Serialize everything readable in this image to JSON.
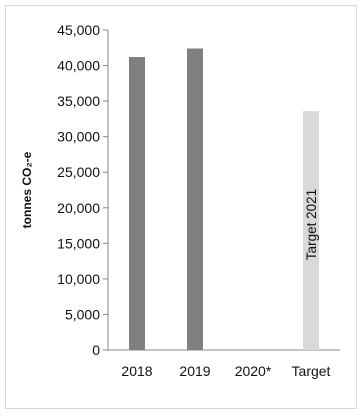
{
  "chart_data": {
    "type": "bar",
    "title": "",
    "xlabel": "",
    "ylabel": "tonnes CO₂-e",
    "ylim": [
      0,
      45000
    ],
    "yticks": [
      0,
      5000,
      10000,
      15000,
      20000,
      25000,
      30000,
      35000,
      40000,
      45000
    ],
    "ytick_labels": [
      "0",
      "5,000",
      "10,000",
      "15,000",
      "20,000",
      "25,000",
      "30,000",
      "35,000",
      "40,000",
      "45,000"
    ],
    "categories": [
      "2018",
      "2019",
      "2020*",
      "Target"
    ],
    "values": [
      41200,
      42400,
      null,
      33600
    ],
    "bar_colors": [
      "#7f7f7f",
      "#7f7f7f",
      "#7f7f7f",
      "#d9d9d9"
    ],
    "annotations": [
      {
        "category": "Target",
        "text": "Target 2021"
      }
    ],
    "grid": false,
    "legend": false
  }
}
